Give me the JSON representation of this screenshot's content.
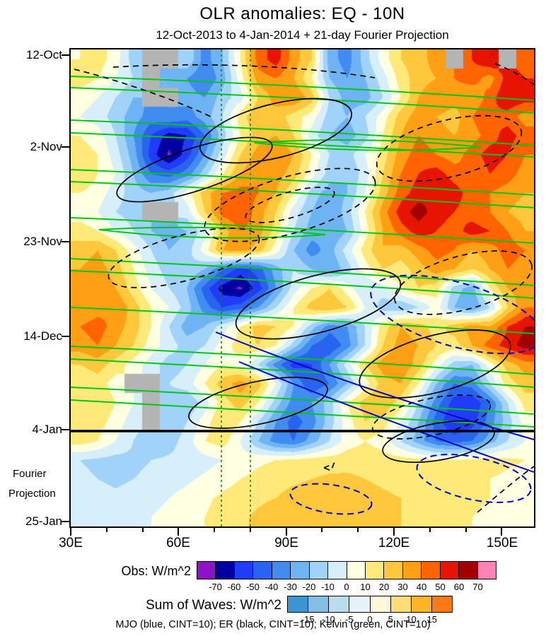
{
  "title": "OLR anomalies: EQ - 10N",
  "subtitle": "12-Oct-2013 to 4-Jan-2014 + 21-day Fourier Projection",
  "axes": {
    "y_ticks": [
      "12-Oct",
      "2-Nov",
      "23-Nov",
      "14-Dec",
      "4-Jan",
      "25-Jan"
    ],
    "x_ticks": [
      "30E",
      "60E",
      "90E",
      "120E",
      "150E"
    ],
    "y_annotation_line1": "Fourier",
    "y_annotation_line2": "Projection"
  },
  "colorbars": {
    "obs": {
      "label": "Obs: W/m^2",
      "tick_values": [
        -70,
        -60,
        -50,
        -40,
        -30,
        -20,
        -10,
        0,
        10,
        20,
        30,
        40,
        50,
        60,
        70
      ],
      "colors": [
        "#8C14C8",
        "#0000A0",
        "#1E3CFA",
        "#2864F0",
        "#418CF0",
        "#6EB4F5",
        "#A0D2FA",
        "#D7EFFA",
        "#FFFFE1",
        "#FFE978",
        "#FFC83C",
        "#FFA014",
        "#FF6400",
        "#E61400",
        "#A00000",
        "#FF82B4"
      ]
    },
    "waves": {
      "label": "Sum of Waves: W/m^2",
      "tick_values": [
        -15,
        -10,
        -5,
        0,
        5,
        10,
        15
      ],
      "colors": [
        "#3C96D2",
        "#82BEE6",
        "#B9DCF0",
        "#E6F4FA",
        "#FFF8DC",
        "#FFDC78",
        "#FFB428",
        "#FF7814"
      ]
    }
  },
  "footnote": "MJO (blue, CINT=10); ER (black, CINT=10); Kelvin (green, CINT=10)",
  "chart_data": {
    "type": "heatmap",
    "title": "OLR anomalies: EQ - 10N",
    "units": "W/m^2",
    "x_axis": {
      "label": "longitude",
      "range_deg": [
        30,
        159
      ],
      "tick_labels": [
        "30E",
        "60E",
        "90E",
        "120E",
        "150E"
      ]
    },
    "y_axis": {
      "label": "time (downward)",
      "start": "12-Oct-2013",
      "obs_end": "4-Jan-2014",
      "end": "25-Jan-2014",
      "tick_labels": [
        "12-Oct",
        "2-Nov",
        "23-Nov",
        "14-Dec",
        "4-Jan",
        "25-Jan"
      ]
    },
    "projection_region": "4-Jan to 25-Jan (21-day Fourier Projection)",
    "fill_levels_step": 10,
    "col_interval_deg": 5,
    "row_interval_days": 4.2,
    "missing_color": "#B4B4B4",
    "vertical_reference_lons": [
      72,
      80
    ],
    "overlays": [
      {
        "name": "MJO",
        "color": "blue",
        "cint": 10
      },
      {
        "name": "ER",
        "color": "black",
        "cint": 10
      },
      {
        "name": "Kelvin",
        "color": "green",
        "cint": 10
      }
    ],
    "values": [
      [
        10,
        15,
        5,
        -15,
        null,
        null,
        -10,
        -35,
        -20,
        10,
        45,
        55,
        35,
        20,
        -25,
        -35,
        -15,
        5,
        20,
        25,
        35,
        null,
        50,
        60,
        null,
        45
      ],
      [
        15,
        10,
        0,
        -10,
        null,
        -20,
        -30,
        -40,
        -25,
        5,
        35,
        40,
        30,
        10,
        -20,
        -30,
        -20,
        -5,
        15,
        25,
        30,
        40,
        45,
        35,
        55,
        50
      ],
      [
        5,
        0,
        -10,
        -20,
        null,
        null,
        -25,
        -30,
        -15,
        -5,
        20,
        35,
        40,
        25,
        -10,
        -25,
        -25,
        -10,
        10,
        30,
        40,
        35,
        30,
        45,
        60,
        55
      ],
      [
        0,
        -5,
        -15,
        -25,
        -35,
        -30,
        -35,
        -25,
        -10,
        15,
        30,
        25,
        15,
        5,
        -15,
        -20,
        -10,
        5,
        25,
        35,
        30,
        25,
        40,
        50,
        45,
        35
      ],
      [
        10,
        5,
        -10,
        -30,
        -50,
        -65,
        -60,
        -40,
        -15,
        10,
        25,
        30,
        20,
        -5,
        -20,
        -25,
        -15,
        10,
        30,
        40,
        35,
        30,
        35,
        45,
        55,
        45
      ],
      [
        15,
        10,
        -5,
        -25,
        -55,
        -72,
        -55,
        -30,
        -5,
        20,
        35,
        40,
        30,
        10,
        -10,
        -15,
        0,
        15,
        35,
        45,
        40,
        35,
        45,
        55,
        50,
        40
      ],
      [
        20,
        10,
        0,
        -20,
        -40,
        -45,
        -35,
        -15,
        10,
        30,
        40,
        35,
        25,
        5,
        -15,
        -20,
        -5,
        20,
        40,
        50,
        55,
        45,
        40,
        50,
        45,
        35
      ],
      [
        10,
        5,
        -5,
        -15,
        -20,
        -15,
        5,
        25,
        40,
        45,
        40,
        30,
        10,
        -15,
        -25,
        -20,
        0,
        25,
        45,
        55,
        60,
        55,
        45,
        40,
        35,
        30
      ],
      [
        5,
        0,
        -10,
        -15,
        null,
        null,
        -5,
        20,
        45,
        50,
        35,
        20,
        -5,
        -20,
        -30,
        -15,
        10,
        35,
        55,
        65,
        55,
        50,
        45,
        40,
        30,
        25
      ],
      [
        15,
        10,
        0,
        -10,
        -20,
        -25,
        -20,
        -5,
        25,
        40,
        35,
        15,
        -10,
        -25,
        -30,
        -20,
        5,
        30,
        45,
        55,
        50,
        45,
        55,
        50,
        40,
        30
      ],
      [
        25,
        30,
        20,
        5,
        -10,
        -20,
        -15,
        5,
        30,
        35,
        25,
        5,
        -20,
        -35,
        -25,
        -5,
        15,
        30,
        25,
        35,
        45,
        40,
        30,
        35,
        45,
        40
      ],
      [
        30,
        35,
        25,
        10,
        -5,
        -15,
        -10,
        -20,
        -40,
        -55,
        -45,
        -25,
        -10,
        -20,
        -30,
        -15,
        5,
        20,
        15,
        25,
        35,
        30,
        20,
        30,
        40,
        35
      ],
      [
        35,
        40,
        30,
        15,
        0,
        -10,
        -20,
        -45,
        -65,
        -72,
        -55,
        -30,
        -5,
        10,
        20,
        5,
        -10,
        -5,
        10,
        20,
        15,
        -15,
        -25,
        10,
        30,
        35
      ],
      [
        30,
        35,
        40,
        25,
        10,
        0,
        -15,
        -35,
        -50,
        -45,
        -30,
        -10,
        10,
        25,
        30,
        20,
        0,
        -15,
        -20,
        -10,
        5,
        -20,
        -30,
        -10,
        20,
        40
      ],
      [
        40,
        45,
        35,
        25,
        10,
        -10,
        -25,
        -20,
        -5,
        10,
        25,
        20,
        10,
        -15,
        -35,
        -30,
        -10,
        15,
        30,
        25,
        15,
        25,
        35,
        30,
        50,
        60
      ],
      [
        35,
        40,
        30,
        20,
        5,
        -5,
        -15,
        -10,
        5,
        15,
        20,
        10,
        -15,
        -40,
        -50,
        -35,
        -10,
        20,
        35,
        30,
        20,
        15,
        30,
        45,
        55,
        65
      ],
      [
        20,
        25,
        15,
        5,
        -5,
        -15,
        -10,
        0,
        10,
        5,
        -10,
        -35,
        -55,
        -50,
        -30,
        -5,
        20,
        35,
        40,
        25,
        5,
        -15,
        -20,
        5,
        25,
        35
      ],
      [
        10,
        15,
        5,
        null,
        null,
        -10,
        -5,
        10,
        25,
        35,
        25,
        0,
        -30,
        -50,
        -40,
        -20,
        5,
        25,
        30,
        10,
        -20,
        -40,
        -35,
        -10,
        15,
        25
      ],
      [
        15,
        20,
        10,
        0,
        null,
        -15,
        -20,
        -5,
        15,
        25,
        10,
        -15,
        -35,
        -30,
        -15,
        10,
        25,
        30,
        15,
        -10,
        -35,
        -55,
        -60,
        -40,
        -10,
        15
      ],
      [
        20,
        15,
        5,
        -5,
        null,
        -20,
        -10,
        5,
        20,
        10,
        -10,
        -30,
        -45,
        -35,
        -15,
        5,
        20,
        15,
        0,
        -20,
        -45,
        -60,
        -55,
        -35,
        -15,
        5
      ],
      [
        15,
        10,
        0,
        -10,
        -20,
        -15,
        -5,
        10,
        15,
        0,
        -20,
        -35,
        -40,
        -25,
        -10,
        5,
        10,
        5,
        -10,
        -25,
        -40,
        -45,
        -40,
        -25,
        -10,
        0
      ],
      [
        -10,
        -12,
        -14,
        -12,
        -10,
        -8,
        -6,
        -4,
        0,
        4,
        8,
        10,
        12,
        14,
        15,
        16,
        16,
        15,
        14,
        12,
        10,
        10,
        12,
        14,
        12,
        10
      ],
      [
        -8,
        -10,
        -12,
        -10,
        -8,
        -5,
        -2,
        2,
        6,
        10,
        13,
        16,
        18,
        20,
        22,
        22,
        20,
        18,
        16,
        15,
        14,
        13,
        12,
        10,
        8,
        6
      ],
      [
        -5,
        -6,
        -8,
        -6,
        -4,
        0,
        4,
        8,
        12,
        15,
        18,
        20,
        24,
        26,
        28,
        26,
        24,
        22,
        20,
        18,
        16,
        14,
        12,
        10,
        8,
        5
      ],
      [
        0,
        -2,
        -4,
        -2,
        0,
        4,
        8,
        10,
        14,
        18,
        22,
        26,
        28,
        28,
        28,
        26,
        24,
        22,
        20,
        18,
        15,
        12,
        10,
        8,
        6,
        4
      ]
    ]
  }
}
